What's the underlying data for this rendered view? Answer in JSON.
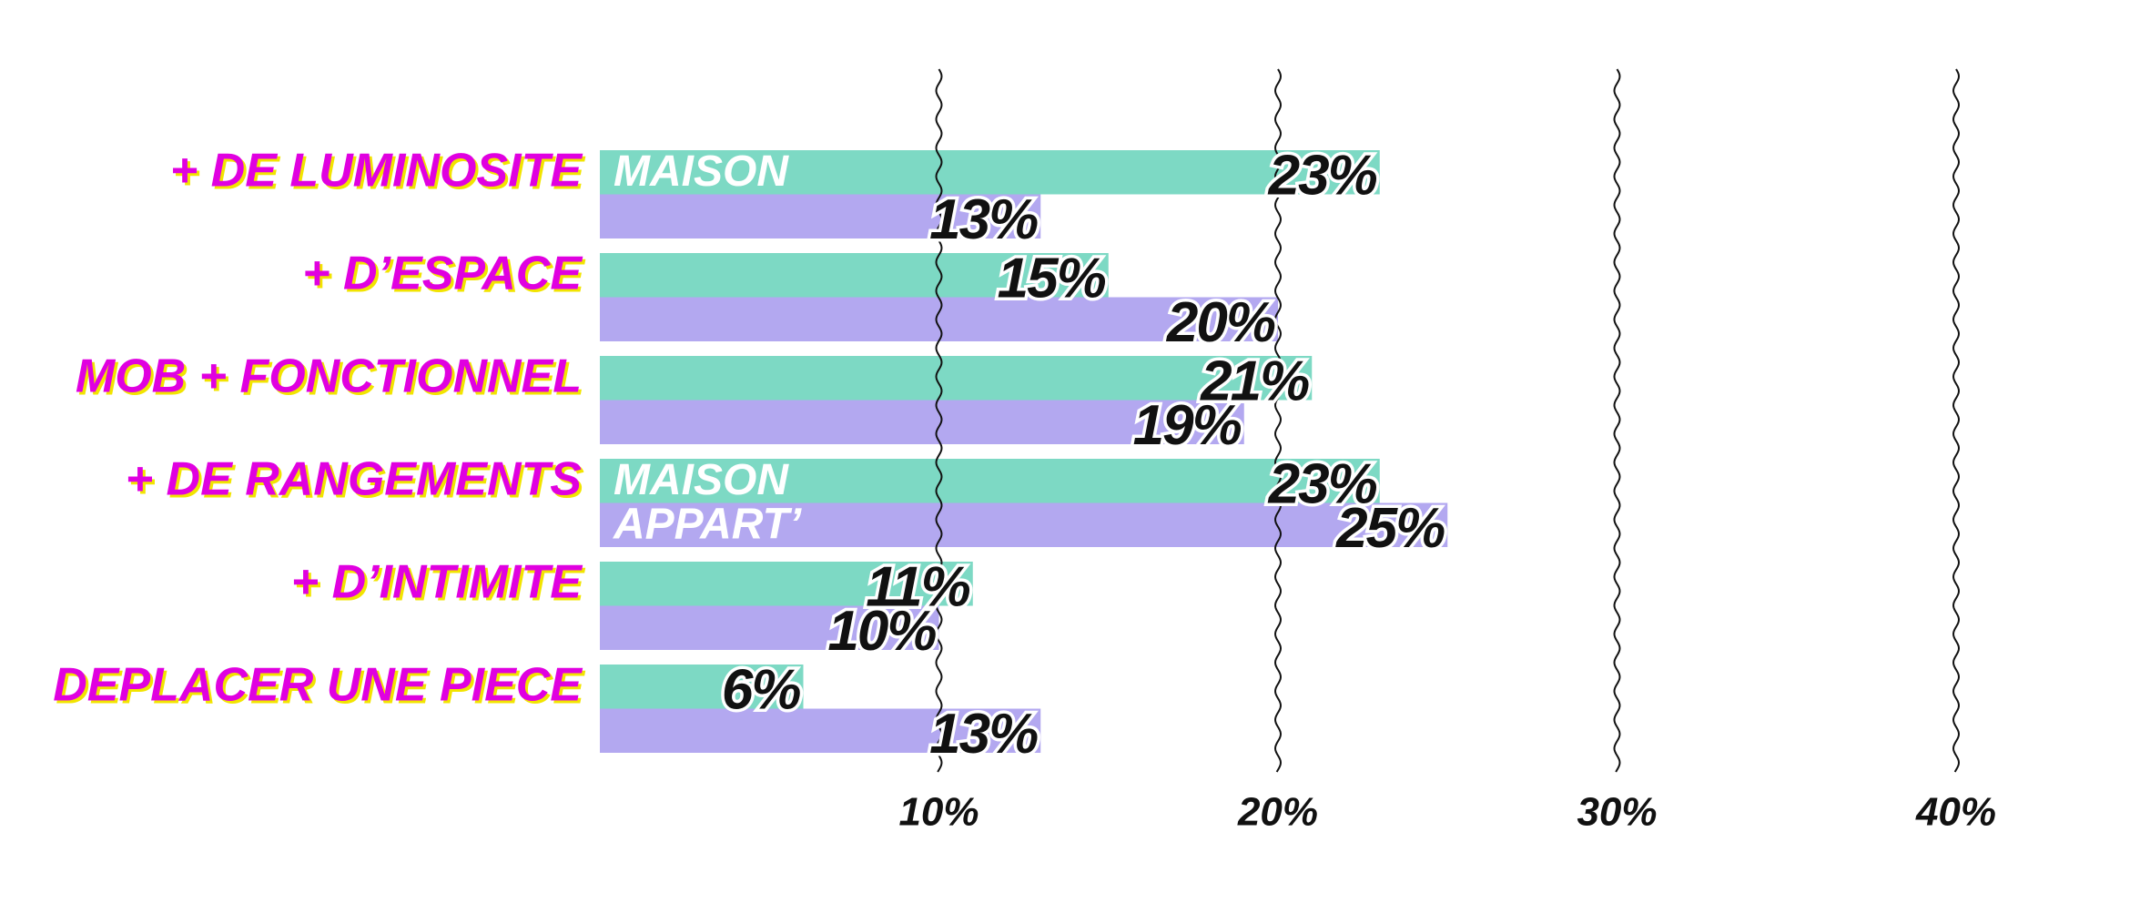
{
  "chart_data": {
    "type": "bar",
    "orientation": "horizontal",
    "categories": [
      "+ DE LUMINOSITE",
      "+ D’ESPACE",
      "MOB + FONCTIONNEL",
      "+ DE RANGEMENTS",
      "+ D’INTIMITE",
      "DEPLACER UNE PIECE"
    ],
    "series": [
      {
        "name": "MAISON",
        "color": "#7dd9c4",
        "values": [
          23,
          15,
          21,
          23,
          11,
          6
        ],
        "value_labels": [
          "23%",
          "15%",
          "21%",
          "23%",
          "11%",
          "6%"
        ]
      },
      {
        "name": "APPART’",
        "color": "#b3a8f0",
        "values": [
          13,
          20,
          19,
          25,
          10,
          13
        ],
        "value_labels": [
          "13%",
          "20%",
          "19%",
          "25%",
          "10%",
          "13%"
        ]
      }
    ],
    "xlim": [
      0,
      40
    ],
    "xticks": [
      {
        "value": 10,
        "label": "10%"
      },
      {
        "value": 20,
        "label": "20%"
      },
      {
        "value": 30,
        "label": "30%"
      },
      {
        "value": 40,
        "label": "40%"
      }
    ],
    "grid": true
  }
}
